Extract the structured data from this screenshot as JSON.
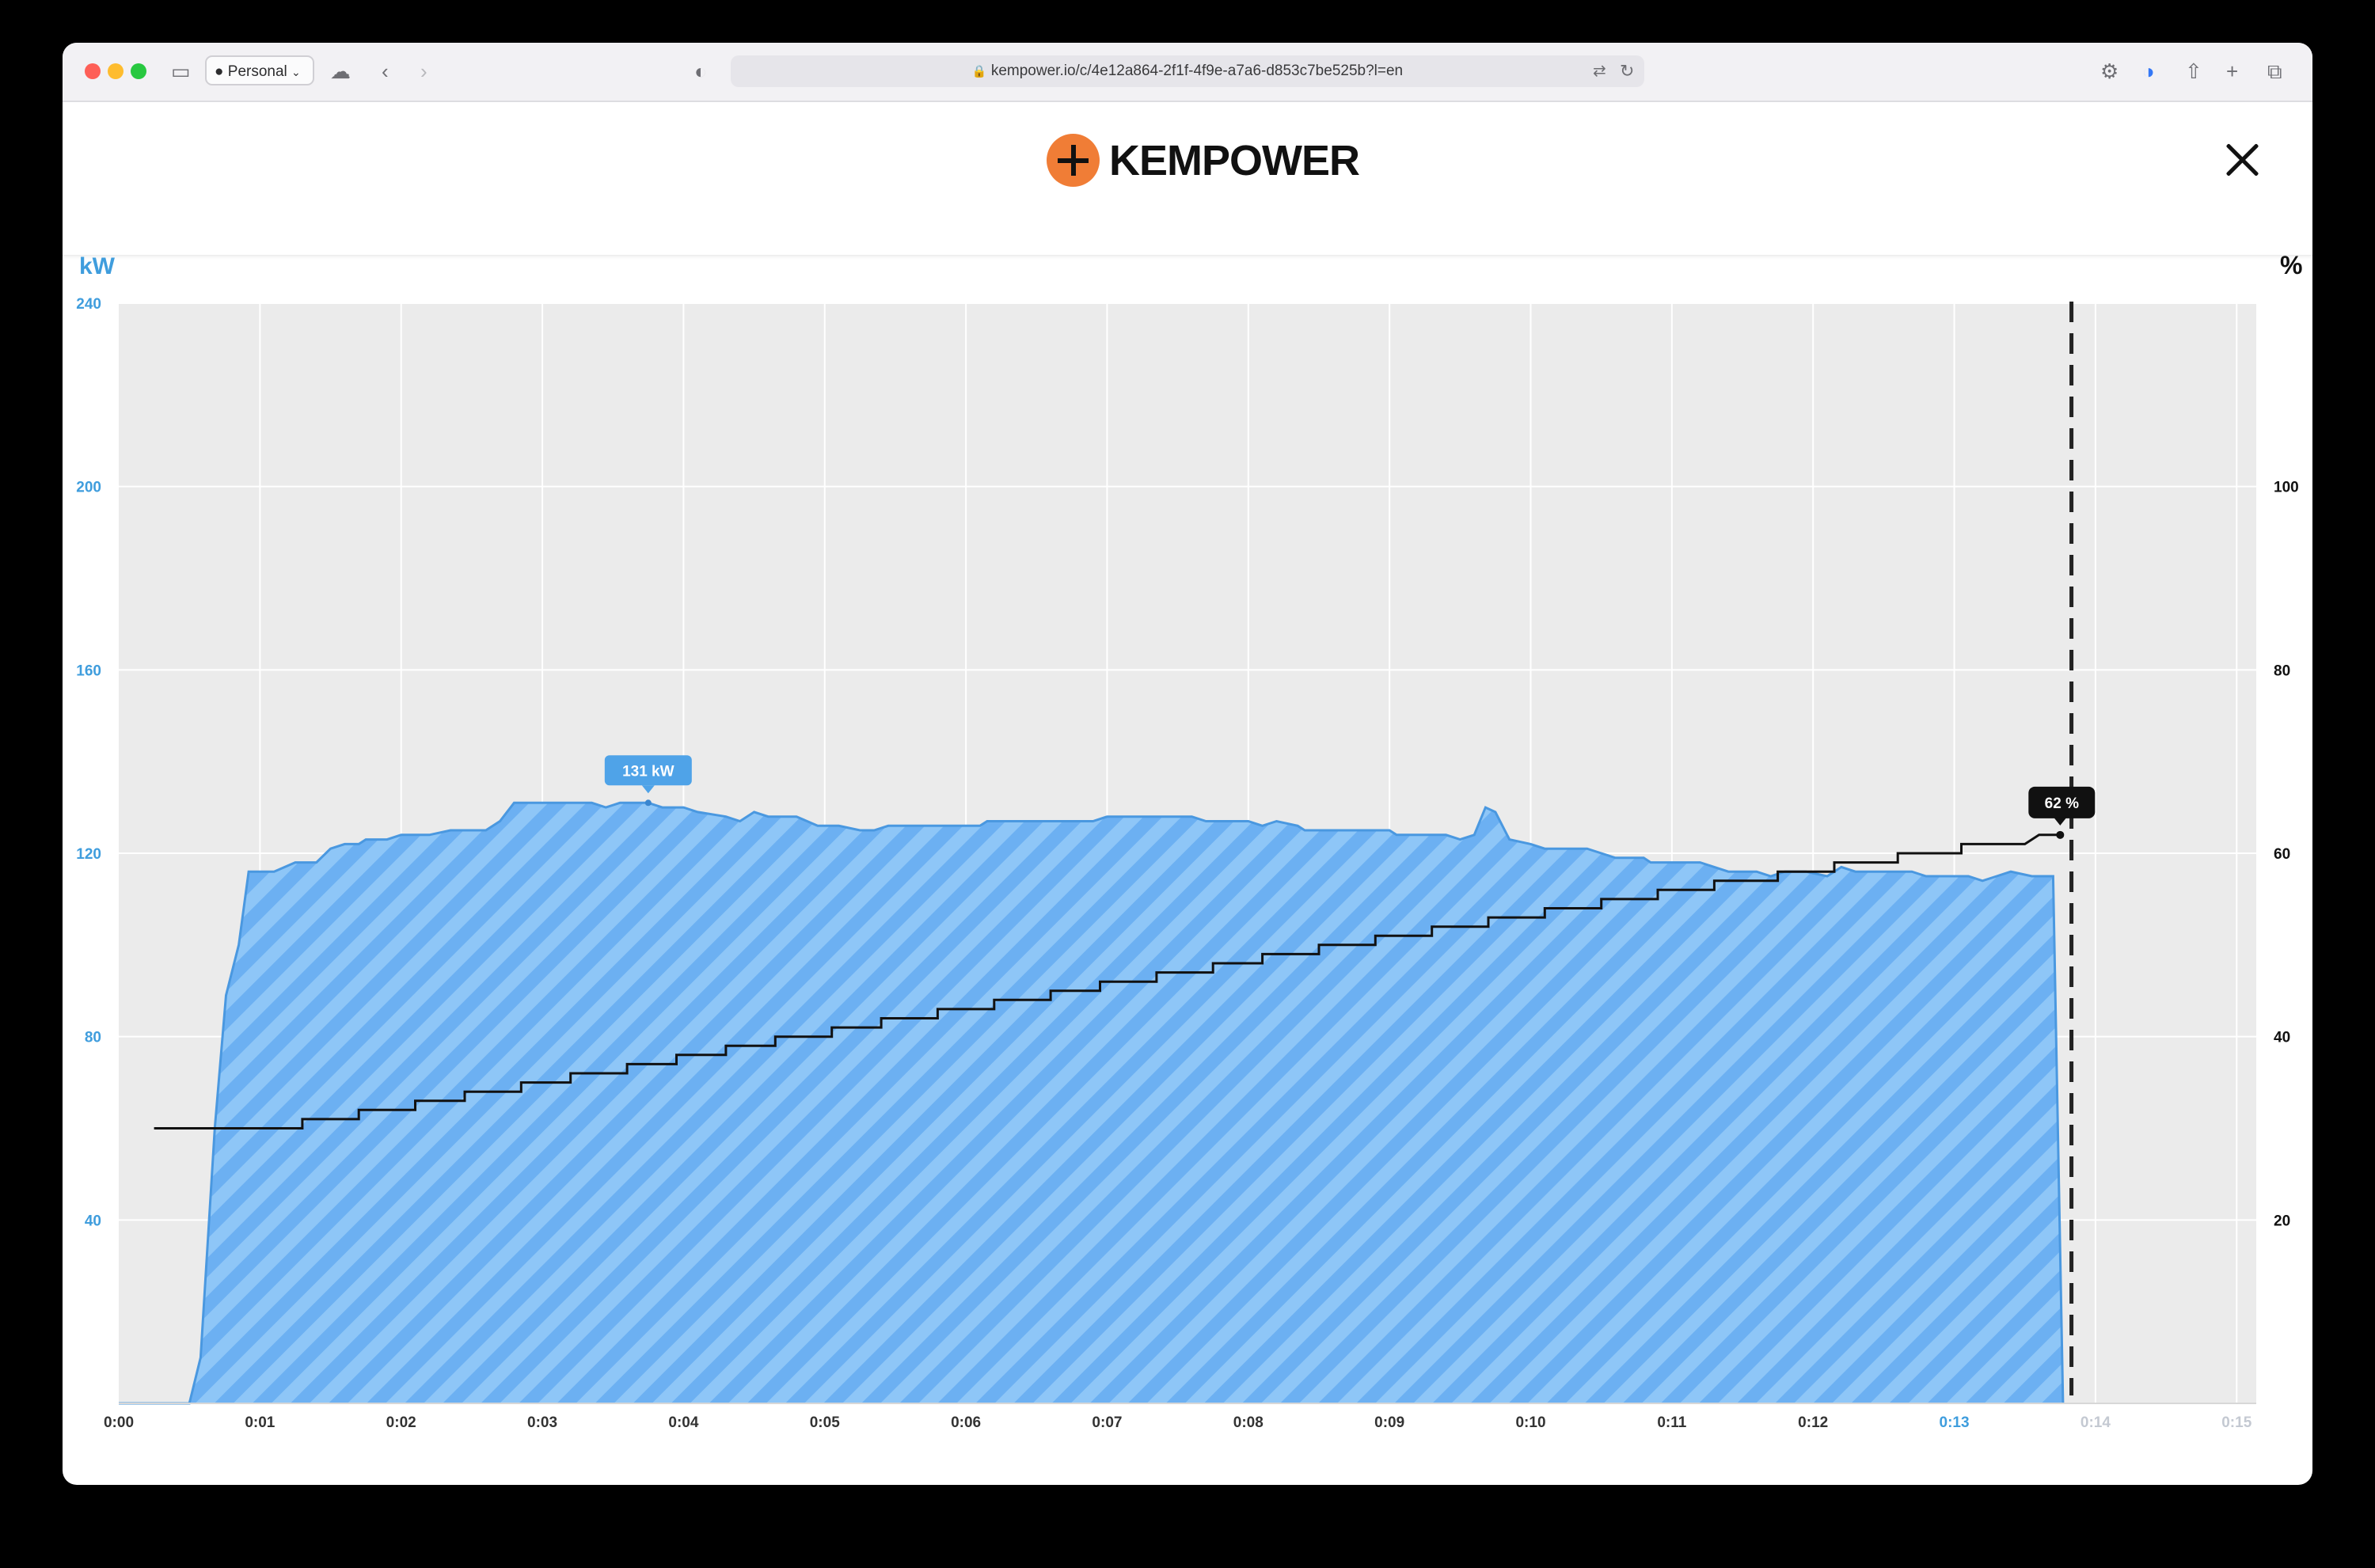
{
  "browser": {
    "profile_label": "Personal",
    "url": "kempower.io/c/4e12a864-2f1f-4f9e-a7a6-d853c7be525b?l=en"
  },
  "header": {
    "logo_text": "KEMPOWER"
  },
  "colors": {
    "brand_orange": "#f07d36",
    "power_fill": "#6cb0f2",
    "power_stripe": "#8ec6f7",
    "power_line": "#4a98e0",
    "axis_blue": "#3f9ddd",
    "plot_background": "#ebebeb"
  },
  "chart_data": {
    "type": "area",
    "left_axis_label": "kW",
    "right_axis_label": "%",
    "x_ticks": [
      "0:00",
      "0:01",
      "0:02",
      "0:03",
      "0:04",
      "0:05",
      "0:06",
      "0:07",
      "0:08",
      "0:09",
      "0:10",
      "0:11",
      "0:12",
      "0:13",
      "0:14",
      "0:15"
    ],
    "x_range_min": [
      0,
      15.2
    ],
    "left_ylim": [
      0,
      240
    ],
    "left_ticks": [
      40,
      80,
      120,
      160,
      200,
      240
    ],
    "right_ylim": [
      0,
      120
    ],
    "right_ticks": [
      20,
      40,
      60,
      80,
      100
    ],
    "grid": true,
    "current_time_min": 13.83,
    "series": [
      {
        "name": "kW",
        "axis": "left",
        "points": [
          [
            0,
            0
          ],
          [
            0.5,
            0
          ],
          [
            0.58,
            10
          ],
          [
            0.68,
            60
          ],
          [
            0.76,
            89
          ],
          [
            0.85,
            100
          ],
          [
            0.92,
            116
          ],
          [
            1.1,
            116
          ],
          [
            1.25,
            118
          ],
          [
            1.4,
            118
          ],
          [
            1.5,
            121
          ],
          [
            1.6,
            122
          ],
          [
            1.7,
            122
          ],
          [
            1.75,
            123
          ],
          [
            1.9,
            123
          ],
          [
            2.0,
            124
          ],
          [
            2.2,
            124
          ],
          [
            2.35,
            125
          ],
          [
            2.6,
            125
          ],
          [
            2.7,
            127
          ],
          [
            2.8,
            131
          ],
          [
            3.1,
            131
          ],
          [
            3.35,
            131
          ],
          [
            3.45,
            130
          ],
          [
            3.55,
            131
          ],
          [
            3.7,
            131
          ],
          [
            3.75,
            131
          ],
          [
            3.85,
            130
          ],
          [
            4.0,
            130
          ],
          [
            4.1,
            129
          ],
          [
            4.3,
            128
          ],
          [
            4.4,
            127
          ],
          [
            4.5,
            129
          ],
          [
            4.6,
            128
          ],
          [
            4.8,
            128
          ],
          [
            4.95,
            126
          ],
          [
            5.1,
            126
          ],
          [
            5.25,
            125
          ],
          [
            5.35,
            125
          ],
          [
            5.45,
            126
          ],
          [
            6.0,
            126
          ],
          [
            6.1,
            126
          ],
          [
            6.15,
            127
          ],
          [
            6.9,
            127
          ],
          [
            7.0,
            128
          ],
          [
            7.6,
            128
          ],
          [
            7.7,
            127
          ],
          [
            8.0,
            127
          ],
          [
            8.1,
            126
          ],
          [
            8.2,
            127
          ],
          [
            8.35,
            126
          ],
          [
            8.4,
            125
          ],
          [
            9.0,
            125
          ],
          [
            9.05,
            124
          ],
          [
            9.4,
            124
          ],
          [
            9.5,
            123
          ],
          [
            9.6,
            124
          ],
          [
            9.68,
            130
          ],
          [
            9.75,
            129
          ],
          [
            9.8,
            126
          ],
          [
            9.85,
            123
          ],
          [
            10.0,
            122
          ],
          [
            10.1,
            121
          ],
          [
            10.4,
            121
          ],
          [
            10.5,
            120
          ],
          [
            10.6,
            119
          ],
          [
            10.8,
            119
          ],
          [
            10.85,
            118
          ],
          [
            11.2,
            118
          ],
          [
            11.3,
            117
          ],
          [
            11.4,
            116
          ],
          [
            11.6,
            116
          ],
          [
            11.7,
            115
          ],
          [
            11.8,
            116
          ],
          [
            11.95,
            116
          ],
          [
            12.1,
            115
          ],
          [
            12.15,
            116
          ],
          [
            12.2,
            117
          ],
          [
            12.3,
            116
          ],
          [
            12.7,
            116
          ],
          [
            12.8,
            115
          ],
          [
            13.1,
            115
          ],
          [
            13.2,
            114
          ],
          [
            13.3,
            115
          ],
          [
            13.4,
            116
          ],
          [
            13.55,
            115
          ],
          [
            13.7,
            115
          ],
          [
            13.77,
            0
          ]
        ],
        "label": "131 kW",
        "label_point": [
          3.75,
          131
        ]
      },
      {
        "name": "%",
        "axis": "right",
        "points": [
          [
            0.25,
            30
          ],
          [
            1.3,
            30
          ],
          [
            1.3,
            31
          ],
          [
            1.7,
            31
          ],
          [
            1.7,
            32
          ],
          [
            2.1,
            32
          ],
          [
            2.1,
            33
          ],
          [
            2.45,
            33
          ],
          [
            2.45,
            34
          ],
          [
            2.85,
            34
          ],
          [
            2.85,
            35
          ],
          [
            3.2,
            35
          ],
          [
            3.2,
            36
          ],
          [
            3.6,
            36
          ],
          [
            3.6,
            37
          ],
          [
            3.95,
            37
          ],
          [
            3.95,
            38
          ],
          [
            4.3,
            38
          ],
          [
            4.3,
            39
          ],
          [
            4.65,
            39
          ],
          [
            4.65,
            40
          ],
          [
            5.05,
            40
          ],
          [
            5.05,
            41
          ],
          [
            5.4,
            41
          ],
          [
            5.4,
            42
          ],
          [
            5.8,
            42
          ],
          [
            5.8,
            43
          ],
          [
            6.2,
            43
          ],
          [
            6.2,
            44
          ],
          [
            6.6,
            44
          ],
          [
            6.6,
            45
          ],
          [
            6.95,
            45
          ],
          [
            6.95,
            46
          ],
          [
            7.35,
            46
          ],
          [
            7.35,
            47
          ],
          [
            7.75,
            47
          ],
          [
            7.75,
            48
          ],
          [
            8.1,
            48
          ],
          [
            8.1,
            49
          ],
          [
            8.5,
            49
          ],
          [
            8.5,
            50
          ],
          [
            8.9,
            50
          ],
          [
            8.9,
            51
          ],
          [
            9.3,
            51
          ],
          [
            9.3,
            52
          ],
          [
            9.7,
            52
          ],
          [
            9.7,
            53
          ],
          [
            10.1,
            53
          ],
          [
            10.1,
            54
          ],
          [
            10.5,
            54
          ],
          [
            10.5,
            55
          ],
          [
            10.9,
            55
          ],
          [
            10.9,
            56
          ],
          [
            11.3,
            56
          ],
          [
            11.3,
            57
          ],
          [
            11.75,
            57
          ],
          [
            11.75,
            58
          ],
          [
            12.15,
            58
          ],
          [
            12.15,
            59
          ],
          [
            12.6,
            59
          ],
          [
            12.6,
            60
          ],
          [
            13.05,
            60
          ],
          [
            13.05,
            61
          ],
          [
            13.5,
            61
          ],
          [
            13.6,
            62
          ],
          [
            13.75,
            62
          ]
        ],
        "label": "62 %",
        "label_point": [
          13.75,
          62
        ]
      }
    ]
  }
}
